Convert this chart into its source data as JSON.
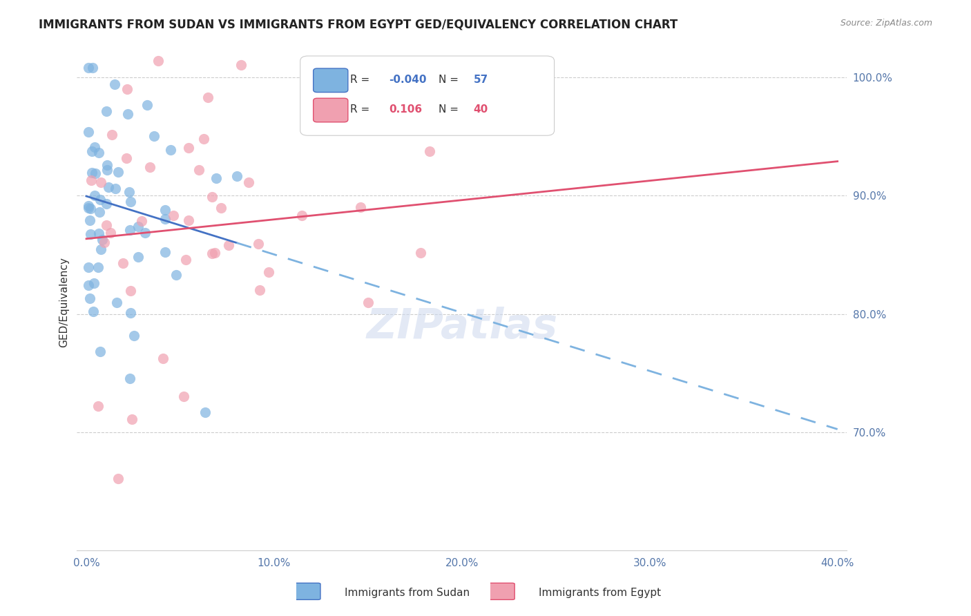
{
  "title": "IMMIGRANTS FROM SUDAN VS IMMIGRANTS FROM EGYPT GED/EQUIVALENCY CORRELATION CHART",
  "source": "Source: ZipAtlas.com",
  "ylabel": "GED/Equivalency",
  "ylabel_right_labels": [
    "100.0%",
    "90.0%",
    "80.0%",
    "70.0%"
  ],
  "ylabel_right_values": [
    1.0,
    0.9,
    0.8,
    0.7
  ],
  "xlim": [
    0.0,
    0.4
  ],
  "ylim": [
    0.6,
    1.02
  ],
  "sudan_color": "#7eb3e0",
  "egypt_color": "#f0a0b0",
  "sudan_R": -0.04,
  "sudan_N": 57,
  "egypt_R": 0.106,
  "egypt_N": 40,
  "legend_R_color": "#4472c4",
  "legend_egypt_R_color": "#e05070",
  "sudan_line_color": "#4472c4",
  "egypt_line_color": "#e05070",
  "watermark": "ZIPatlas"
}
